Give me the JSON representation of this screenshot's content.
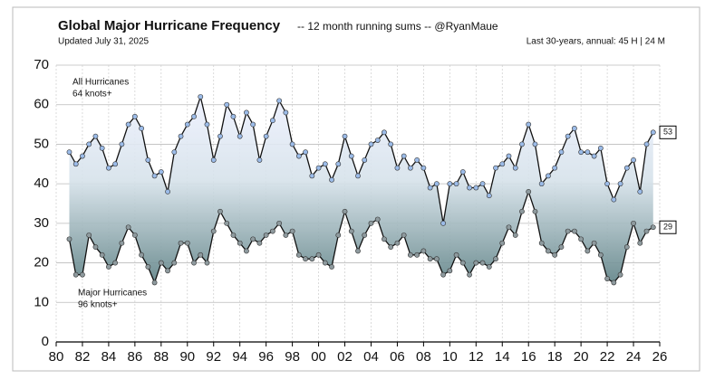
{
  "chart_data": {
    "type": "line",
    "title": "Global Major Hurricane Frequency",
    "subtitle": "-- 12 month running sums -- @RyanMaue",
    "updated": "Updated July 31, 2025",
    "summary": "Last 30-years, annual:  45 H | 24 M",
    "x": [
      1981,
      1981.5,
      1982,
      1982.5,
      1983,
      1983.5,
      1984,
      1984.5,
      1985,
      1985.5,
      1986,
      1986.5,
      1987,
      1987.5,
      1988,
      1988.5,
      1989,
      1989.5,
      1990,
      1990.5,
      1991,
      1991.5,
      1992,
      1992.5,
      1993,
      1993.5,
      1994,
      1994.5,
      1995,
      1995.5,
      1996,
      1996.5,
      1997,
      1997.5,
      1998,
      1998.5,
      1999,
      1999.5,
      2000,
      2000.5,
      2001,
      2001.5,
      2002,
      2002.5,
      2003,
      2003.5,
      2004,
      2004.5,
      2005,
      2005.5,
      2006,
      2006.5,
      2007,
      2007.5,
      2008,
      2008.5,
      2009,
      2009.5,
      2010,
      2010.5,
      2011,
      2011.5,
      2012,
      2012.5,
      2013,
      2013.5,
      2014,
      2014.5,
      2015,
      2015.5,
      2016,
      2016.5,
      2017,
      2017.5,
      2018,
      2018.5,
      2019,
      2019.5,
      2020,
      2020.5,
      2021,
      2021.5,
      2022,
      2022.5,
      2023,
      2023.5,
      2024,
      2024.5,
      2025,
      2025.5
    ],
    "series": [
      {
        "name": "All Hurricanes",
        "note": "64 knots+",
        "color": "#9bbbe8",
        "values": [
          48,
          45,
          47,
          50,
          52,
          49,
          44,
          45,
          50,
          55,
          57,
          54,
          46,
          42,
          43,
          38,
          48,
          52,
          55,
          57,
          62,
          55,
          46,
          52,
          60,
          57,
          52,
          58,
          55,
          46,
          52,
          56,
          61,
          58,
          50,
          47,
          48,
          42,
          44,
          45,
          41,
          45,
          52,
          47,
          42,
          46,
          50,
          51,
          53,
          50,
          44,
          47,
          44,
          46,
          44,
          39,
          40,
          30,
          40,
          40,
          43,
          39,
          39,
          40,
          37,
          44,
          45,
          47,
          44,
          50,
          55,
          50,
          40,
          42,
          44,
          48,
          52,
          54,
          48,
          48,
          47,
          49,
          40,
          36,
          40,
          44,
          46,
          38,
          50,
          53
        ]
      },
      {
        "name": "Major Hurricanes",
        "note": "96 knots+",
        "color": "#8e9a9e",
        "values": [
          26,
          17,
          17,
          27,
          24,
          22,
          19,
          20,
          25,
          29,
          27,
          22,
          19,
          15,
          20,
          18,
          20,
          25,
          25,
          20,
          22,
          20,
          28,
          33,
          30,
          27,
          25,
          23,
          26,
          25,
          27,
          28,
          30,
          27,
          28,
          22,
          21,
          21,
          22,
          20,
          19,
          27,
          33,
          28,
          23,
          27,
          30,
          31,
          26,
          24,
          25,
          27,
          22,
          22,
          23,
          21,
          21,
          17,
          18,
          22,
          20,
          17,
          20,
          20,
          19,
          21,
          25,
          29,
          27,
          33,
          38,
          33,
          25,
          23,
          22,
          24,
          28,
          28,
          26,
          23,
          25,
          22,
          16,
          15,
          17,
          24,
          30,
          25,
          28,
          29
        ]
      }
    ],
    "xlim": [
      1980,
      2026
    ],
    "xticks": [
      {
        "value": 1980,
        "label": "80"
      },
      {
        "value": 1982,
        "label": "82"
      },
      {
        "value": 1984,
        "label": "84"
      },
      {
        "value": 1986,
        "label": "86"
      },
      {
        "value": 1988,
        "label": "88"
      },
      {
        "value": 1990,
        "label": "90"
      },
      {
        "value": 1992,
        "label": "92"
      },
      {
        "value": 1994,
        "label": "94"
      },
      {
        "value": 1996,
        "label": "96"
      },
      {
        "value": 1998,
        "label": "98"
      },
      {
        "value": 2000,
        "label": "00"
      },
      {
        "value": 2002,
        "label": "02"
      },
      {
        "value": 2004,
        "label": "04"
      },
      {
        "value": 2006,
        "label": "06"
      },
      {
        "value": 2008,
        "label": "08"
      },
      {
        "value": 2010,
        "label": "10"
      },
      {
        "value": 2012,
        "label": "12"
      },
      {
        "value": 2014,
        "label": "14"
      },
      {
        "value": 2016,
        "label": "16"
      },
      {
        "value": 2018,
        "label": "18"
      },
      {
        "value": 2020,
        "label": "20"
      },
      {
        "value": 2022,
        "label": "22"
      },
      {
        "value": 2024,
        "label": "24"
      },
      {
        "value": 2026,
        "label": "26"
      }
    ],
    "ylim": [
      0,
      70
    ],
    "yticks": [
      0,
      10,
      20,
      30,
      40,
      50,
      60,
      70
    ],
    "grid": true
  }
}
